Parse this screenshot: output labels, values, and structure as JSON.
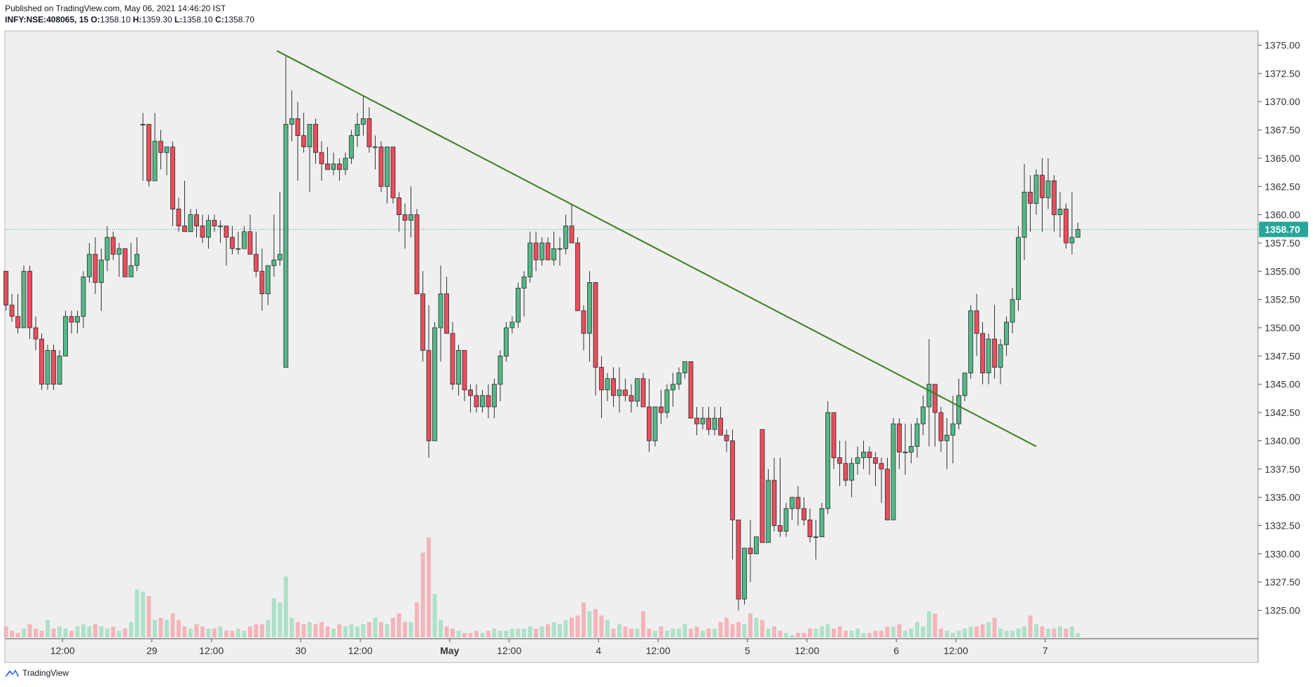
{
  "header": {
    "published": "Published on TradingView.com, May 06, 2021 14:46:20 IST",
    "symbol": "INFY:NSE:408065, 15",
    "open_label": "O:",
    "open": "1358.10",
    "high_label": "H:",
    "high": "1359.30",
    "low_label": "L:",
    "low": "1358.10",
    "close_label": "C:",
    "close": "1358.70"
  },
  "footer": {
    "brand": "TradingView"
  },
  "colors": {
    "up": "#26a69a",
    "up_fill": "#53b987",
    "down": "#eb4d5c",
    "down_fill": "#eb4d5c",
    "trendline": "#3a7d1e",
    "last_price": "#26a69a",
    "vol_up": "#aee1c8",
    "vol_down": "#f4b4bb",
    "pane_bg": "#efefef"
  },
  "chart_data": {
    "type": "candlestick",
    "interval": "15",
    "ylim": [
      1322.5,
      1377.0
    ],
    "y_ticks": [
      "1375.00",
      "1372.50",
      "1370.00",
      "1367.50",
      "1365.00",
      "1362.50",
      "1360.00",
      "1357.50",
      "1355.00",
      "1352.50",
      "1350.00",
      "1347.50",
      "1345.00",
      "1342.50",
      "1340.00",
      "1337.50",
      "1335.00",
      "1332.50",
      "1330.00",
      "1327.50",
      "1325.00"
    ],
    "x_ticks": [
      {
        "label": "12:00",
        "bar": 9.5,
        "bold": false
      },
      {
        "label": "29",
        "bar": 24.5,
        "bold": false
      },
      {
        "label": "12:00",
        "bar": 34.5,
        "bold": false
      },
      {
        "label": "30",
        "bar": 49.5,
        "bold": false
      },
      {
        "label": "12:00",
        "bar": 59.5,
        "bold": false
      },
      {
        "label": "May",
        "bar": 74.5,
        "bold": true
      },
      {
        "label": "12:00",
        "bar": 84.5,
        "bold": false
      },
      {
        "label": "4",
        "bar": 99.5,
        "bold": false
      },
      {
        "label": "12:00",
        "bar": 109.5,
        "bold": false
      },
      {
        "label": "5",
        "bar": 124.5,
        "bold": false
      },
      {
        "label": "12:00",
        "bar": 134.5,
        "bold": false
      },
      {
        "label": "6",
        "bar": 149.5,
        "bold": false
      },
      {
        "label": "12:00",
        "bar": 159.5,
        "bold": false
      },
      {
        "label": "7",
        "bar": 174.5,
        "bold": false
      }
    ],
    "last_price": "1358.70",
    "trendline": {
      "from": {
        "bar": 45.5,
        "price": 1374.5
      },
      "to": {
        "bar": 173.0,
        "price": 1339.5
      }
    },
    "ohlc": [
      [
        1355,
        1355,
        1351.5,
        1352
      ],
      [
        1352,
        1353,
        1350.5,
        1351
      ],
      [
        1351,
        1353,
        1349.5,
        1350
      ],
      [
        1350,
        1355.5,
        1350,
        1355
      ],
      [
        1355,
        1355.5,
        1349,
        1350
      ],
      [
        1350,
        1351,
        1348,
        1349
      ],
      [
        1349,
        1349.5,
        1344.5,
        1345
      ],
      [
        1345,
        1348.5,
        1344.5,
        1348
      ],
      [
        1348,
        1348.5,
        1344.5,
        1345
      ],
      [
        1345,
        1348,
        1345,
        1347.5
      ],
      [
        1347.5,
        1351.5,
        1347.5,
        1351
      ],
      [
        1351,
        1351.5,
        1349.5,
        1350.5
      ],
      [
        1350.5,
        1351.5,
        1349.5,
        1351
      ],
      [
        1351,
        1355,
        1350,
        1354.5
      ],
      [
        1354.5,
        1357.5,
        1354,
        1356.5
      ],
      [
        1356.5,
        1358,
        1353,
        1354
      ],
      [
        1354,
        1357,
        1351.5,
        1356
      ],
      [
        1356,
        1359,
        1355,
        1358
      ],
      [
        1358,
        1358.5,
        1356,
        1356.5
      ],
      [
        1356.5,
        1357.5,
        1354.5,
        1357
      ],
      [
        1357,
        1357,
        1354.5,
        1354.5
      ],
      [
        1354.5,
        1357.5,
        1354.5,
        1355.5
      ],
      [
        1355.5,
        1358,
        1355,
        1356.5
      ],
      [
        1368,
        1369,
        1363,
        1368
      ],
      [
        1368,
        1368,
        1362.5,
        1363
      ],
      [
        1363,
        1369,
        1363,
        1366.5
      ],
      [
        1366.5,
        1367.5,
        1364,
        1365.5
      ],
      [
        1365.5,
        1366,
        1363.5,
        1366
      ],
      [
        1366,
        1366.5,
        1359,
        1360.5
      ],
      [
        1360.5,
        1361.5,
        1358.5,
        1359
      ],
      [
        1359,
        1363,
        1358.5,
        1358.5
      ],
      [
        1358.5,
        1360.5,
        1358.5,
        1360
      ],
      [
        1360,
        1360.5,
        1358,
        1359
      ],
      [
        1359,
        1360,
        1357.5,
        1358
      ],
      [
        1358,
        1360,
        1357,
        1359.5
      ],
      [
        1359.5,
        1360,
        1358.5,
        1359
      ],
      [
        1359,
        1359.5,
        1357.5,
        1359
      ],
      [
        1359,
        1359,
        1355.5,
        1358
      ],
      [
        1358,
        1359,
        1356.5,
        1357
      ],
      [
        1357,
        1358.5,
        1356.5,
        1357
      ],
      [
        1357,
        1359,
        1357,
        1358.5
      ],
      [
        1358.5,
        1360,
        1356.5,
        1356.5
      ],
      [
        1356.5,
        1358.5,
        1354.5,
        1355
      ],
      [
        1355,
        1357,
        1351.5,
        1353
      ],
      [
        1353,
        1355,
        1352,
        1355.5
      ],
      [
        1355.5,
        1360,
        1354.5,
        1356
      ],
      [
        1356,
        1362,
        1355.5,
        1356.5
      ],
      [
        1346.5,
        1374,
        1346.5,
        1368
      ],
      [
        1368,
        1371,
        1366.5,
        1368.5
      ],
      [
        1368.5,
        1370,
        1363,
        1367
      ],
      [
        1367,
        1369,
        1365.5,
        1366
      ],
      [
        1366,
        1368,
        1362,
        1368
      ],
      [
        1368,
        1368.5,
        1364.5,
        1365.5
      ],
      [
        1365.5,
        1366.5,
        1363,
        1364.5
      ],
      [
        1364.5,
        1366,
        1364,
        1364
      ],
      [
        1364,
        1365.5,
        1363.5,
        1364.5
      ],
      [
        1364.5,
        1365,
        1363,
        1364
      ],
      [
        1364,
        1365.5,
        1363.5,
        1365
      ],
      [
        1365,
        1367.5,
        1364.5,
        1367
      ],
      [
        1367,
        1369,
        1366,
        1368
      ],
      [
        1368,
        1370.5,
        1367,
        1368.5
      ],
      [
        1368.5,
        1369.5,
        1365.5,
        1366
      ],
      [
        1366,
        1367,
        1364,
        1366
      ],
      [
        1366,
        1366.5,
        1362,
        1362.5
      ],
      [
        1362.5,
        1366,
        1361,
        1366
      ],
      [
        1366,
        1366,
        1361,
        1361.5
      ],
      [
        1361.5,
        1362,
        1358.5,
        1360
      ],
      [
        1360,
        1361,
        1357,
        1359.5
      ],
      [
        1359.5,
        1362.5,
        1358,
        1360
      ],
      [
        1360,
        1360.5,
        1353,
        1353
      ],
      [
        1353,
        1355,
        1347,
        1348
      ],
      [
        1348,
        1352,
        1338.5,
        1340
      ],
      [
        1340,
        1350.5,
        1340,
        1350
      ],
      [
        1350,
        1355.5,
        1347,
        1353
      ],
      [
        1353,
        1354.5,
        1349.5,
        1349.5
      ],
      [
        1349.5,
        1350.5,
        1344.5,
        1345
      ],
      [
        1345,
        1348.5,
        1344,
        1348
      ],
      [
        1348,
        1348,
        1343.5,
        1344.5
      ],
      [
        1344.5,
        1345,
        1342.5,
        1344
      ],
      [
        1344,
        1345,
        1342.5,
        1343
      ],
      [
        1343,
        1344.5,
        1342.5,
        1344
      ],
      [
        1344,
        1345,
        1342,
        1343
      ],
      [
        1343,
        1345.5,
        1342,
        1345
      ],
      [
        1345,
        1348,
        1343.5,
        1347.5
      ],
      [
        1347.5,
        1350.5,
        1347,
        1350
      ],
      [
        1350,
        1351,
        1349.5,
        1350.5
      ],
      [
        1350.5,
        1354,
        1350,
        1353.5
      ],
      [
        1353.5,
        1355,
        1351,
        1354.5
      ],
      [
        1354.5,
        1358.5,
        1354,
        1357.5
      ],
      [
        1357.5,
        1358.5,
        1355,
        1356
      ],
      [
        1356,
        1358,
        1355.5,
        1357.5
      ],
      [
        1357.5,
        1358,
        1356,
        1356
      ],
      [
        1356,
        1358.5,
        1355.5,
        1357
      ],
      [
        1357,
        1358,
        1355.5,
        1357
      ],
      [
        1357,
        1360,
        1356.5,
        1359
      ],
      [
        1359,
        1361,
        1357.5,
        1357.5
      ],
      [
        1357.5,
        1358,
        1351.5,
        1351.5
      ],
      [
        1351.5,
        1352,
        1348,
        1349.5
      ],
      [
        1349.5,
        1355,
        1347,
        1354
      ],
      [
        1354,
        1354,
        1344,
        1346.5
      ],
      [
        1346.5,
        1347.5,
        1342,
        1344.5
      ],
      [
        1344.5,
        1346,
        1343.5,
        1345.5
      ],
      [
        1345.5,
        1346.5,
        1343,
        1344
      ],
      [
        1344,
        1346.5,
        1342.5,
        1344.5
      ],
      [
        1344.5,
        1345.5,
        1343.5,
        1344
      ],
      [
        1344,
        1345,
        1342.5,
        1343.5
      ],
      [
        1343.5,
        1345.5,
        1343,
        1345.5
      ],
      [
        1345.5,
        1346,
        1343,
        1343
      ],
      [
        1343,
        1345.5,
        1339,
        1340
      ],
      [
        1340,
        1343,
        1339.5,
        1343
      ],
      [
        1343,
        1344.5,
        1341.5,
        1342.5
      ],
      [
        1342.5,
        1345,
        1342,
        1344.5
      ],
      [
        1344.5,
        1346,
        1343,
        1345
      ],
      [
        1345,
        1346.5,
        1344.5,
        1346
      ],
      [
        1346,
        1347,
        1345.5,
        1347
      ],
      [
        1347,
        1347,
        1342,
        1342
      ],
      [
        1342,
        1343,
        1340.5,
        1341.5
      ],
      [
        1341.5,
        1343,
        1341,
        1342
      ],
      [
        1342,
        1343,
        1340.5,
        1341
      ],
      [
        1341,
        1343,
        1340.5,
        1342
      ],
      [
        1342,
        1343,
        1340.5,
        1340.5
      ],
      [
        1340.5,
        1341,
        1339,
        1340
      ],
      [
        1340,
        1341,
        1329.5,
        1333
      ],
      [
        1333,
        1333,
        1325,
        1326
      ],
      [
        1326,
        1330,
        1325.5,
        1330.5
      ],
      [
        1330.5,
        1333,
        1327.5,
        1330
      ],
      [
        1330,
        1331.5,
        1330,
        1331.5
      ],
      [
        1341,
        1341,
        1331,
        1331
      ],
      [
        1331,
        1337.5,
        1331,
        1336.5
      ],
      [
        1336.5,
        1338.5,
        1332,
        1332.5
      ],
      [
        1332.5,
        1338.5,
        1331.5,
        1332
      ],
      [
        1332,
        1334.5,
        1331.5,
        1334
      ],
      [
        1334,
        1335,
        1333,
        1335
      ],
      [
        1335,
        1336,
        1332.5,
        1334
      ],
      [
        1334,
        1335,
        1332.5,
        1333
      ],
      [
        1333,
        1334,
        1331,
        1331.5
      ],
      [
        1331.5,
        1333,
        1329.5,
        1331.5
      ],
      [
        1331.5,
        1334.5,
        1331.5,
        1334
      ],
      [
        1334,
        1343.5,
        1333.5,
        1342.5
      ],
      [
        1342.5,
        1342.5,
        1337.5,
        1338.5
      ],
      [
        1338.5,
        1340,
        1336,
        1338
      ],
      [
        1338,
        1340,
        1336,
        1336.5
      ],
      [
        1336.5,
        1338.5,
        1335,
        1338
      ],
      [
        1338,
        1339.5,
        1337,
        1338.5
      ],
      [
        1338.5,
        1340,
        1337.5,
        1339
      ],
      [
        1339,
        1339.5,
        1337,
        1338.5
      ],
      [
        1338.5,
        1339,
        1336,
        1338
      ],
      [
        1338,
        1338.5,
        1334.5,
        1337.5
      ],
      [
        1337.5,
        1338.5,
        1333,
        1333
      ],
      [
        1333,
        1342,
        1333,
        1341.5
      ],
      [
        1341.5,
        1342,
        1337.5,
        1339
      ],
      [
        1339,
        1341.5,
        1337,
        1339
      ],
      [
        1339,
        1341.5,
        1338,
        1339.5
      ],
      [
        1339.5,
        1342,
        1338.5,
        1341.5
      ],
      [
        1341.5,
        1344,
        1340.5,
        1343
      ],
      [
        1343,
        1349,
        1339.5,
        1345
      ],
      [
        1345,
        1345,
        1339.5,
        1342.5
      ],
      [
        1342.5,
        1343,
        1339,
        1340
      ],
      [
        1340,
        1342,
        1337.5,
        1340.5
      ],
      [
        1340.5,
        1344,
        1338,
        1341.5
      ],
      [
        1341.5,
        1345.5,
        1341,
        1344
      ],
      [
        1344,
        1346,
        1343.5,
        1346
      ],
      [
        1346,
        1352,
        1345.5,
        1351.5
      ],
      [
        1351.5,
        1353,
        1347.5,
        1349.5
      ],
      [
        1349.5,
        1350.5,
        1345,
        1346
      ],
      [
        1346,
        1349.5,
        1345,
        1349
      ],
      [
        1349,
        1352,
        1345.5,
        1346.5
      ],
      [
        1346.5,
        1349,
        1345,
        1348.5
      ],
      [
        1348.5,
        1351,
        1347.5,
        1350.5
      ],
      [
        1350.5,
        1353.5,
        1349.5,
        1352.5
      ],
      [
        1352.5,
        1359,
        1351.5,
        1358
      ],
      [
        1358,
        1364.5,
        1356,
        1362
      ],
      [
        1362,
        1363.5,
        1358.5,
        1361
      ],
      [
        1361,
        1364,
        1360,
        1363.5
      ],
      [
        1363.5,
        1365,
        1358.5,
        1361.5
      ],
      [
        1361.5,
        1365,
        1360.5,
        1363
      ],
      [
        1363,
        1363.5,
        1358.5,
        1360
      ],
      [
        1360,
        1362,
        1358,
        1360.5
      ],
      [
        1360.5,
        1361,
        1357,
        1357.5
      ],
      [
        1357.5,
        1362,
        1356.5,
        1358
      ],
      [
        1358,
        1359.3,
        1358,
        1358.7
      ]
    ],
    "volume": [
      5,
      3,
      2,
      4,
      6,
      4,
      3,
      8,
      4,
      5,
      4,
      3,
      5,
      6,
      5,
      6,
      5,
      4,
      5,
      3,
      4,
      7,
      22,
      21,
      19,
      8,
      9,
      8,
      11,
      8,
      5,
      4,
      6,
      5,
      4,
      4,
      5,
      3,
      3,
      4,
      3,
      5,
      6,
      6,
      8,
      18,
      16,
      28,
      9,
      7,
      6,
      7,
      6,
      7,
      5,
      4,
      6,
      5,
      6,
      5,
      6,
      7,
      9,
      7,
      6,
      9,
      11,
      7,
      7,
      16,
      39,
      46,
      20,
      8,
      5,
      4,
      3,
      2,
      2,
      3,
      2,
      3,
      4,
      3,
      3,
      4,
      4,
      4,
      5,
      4,
      5,
      6,
      7,
      6,
      8,
      9,
      10,
      16,
      12,
      13,
      10,
      8,
      4,
      6,
      5,
      4,
      4,
      12,
      4,
      3,
      5,
      3,
      4,
      4,
      6,
      4,
      5,
      3,
      4,
      4,
      7,
      9,
      6,
      7,
      6,
      11,
      9,
      8,
      4,
      5,
      3,
      2,
      1,
      2,
      2,
      4,
      4,
      5,
      6,
      4,
      5,
      3,
      3,
      4,
      2,
      2,
      3,
      3,
      5,
      5,
      6,
      3,
      4,
      7,
      5,
      12,
      11,
      4,
      3,
      2,
      3,
      4,
      5,
      5,
      6,
      7,
      9,
      4,
      3,
      3,
      4,
      5,
      10,
      6,
      5,
      4,
      4,
      5,
      4,
      5,
      2
    ]
  }
}
